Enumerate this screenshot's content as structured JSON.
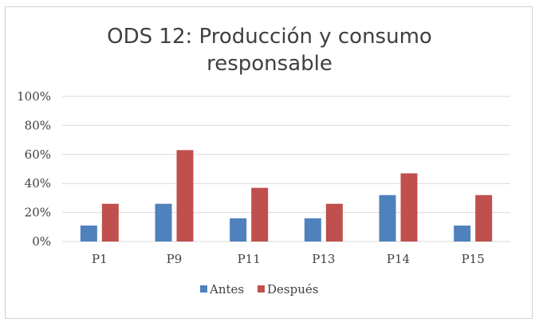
{
  "chart_data": {
    "type": "bar",
    "title_lines": [
      "ODS 12: Producción y consumo",
      "responsable"
    ],
    "categories": [
      "P1",
      "P9",
      "P11",
      "P13",
      "P14",
      "P15"
    ],
    "series": [
      {
        "name": "Antes",
        "color": "#4f81bd",
        "values": [
          11,
          26,
          16,
          16,
          32,
          11
        ]
      },
      {
        "name": "Después",
        "color": "#c0504d",
        "values": [
          26,
          63,
          37,
          26,
          47,
          32
        ]
      }
    ],
    "ylim": [
      0,
      100
    ],
    "yticks": [
      0,
      20,
      40,
      60,
      80,
      100
    ],
    "ytick_labels": [
      "0%",
      "20%",
      "40%",
      "60%",
      "80%",
      "100%"
    ],
    "grid": true,
    "legend_position": "bottom",
    "xlabel": "",
    "ylabel": ""
  }
}
